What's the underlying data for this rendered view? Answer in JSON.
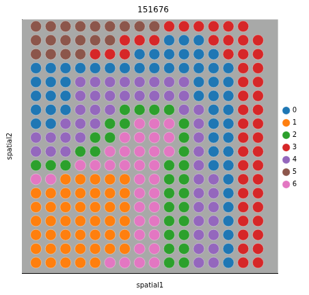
{
  "chart_data": {
    "type": "scatter",
    "title": "151676",
    "x_label": "spatial1",
    "y_label": "spatial2",
    "xlim": [
      31,
      377
    ],
    "ylim": [
      30,
      395
    ],
    "tick_labels": false,
    "grid": false,
    "legend": "right",
    "marker": "circle",
    "series": [
      {
        "name": "0",
        "color": "#1f77b4",
        "x": [
          230,
          250,
          270,
          190,
          210,
          230,
          250,
          270,
          290,
          50,
          70,
          90,
          110,
          130,
          150,
          170,
          190,
          210,
          230,
          250,
          270,
          290,
          310,
          50,
          70,
          90,
          270,
          290,
          310,
          50,
          70,
          90,
          270,
          290,
          310,
          50,
          70,
          90,
          290,
          310,
          50,
          70,
          290,
          310,
          290,
          310,
          290,
          310,
          290,
          310,
          310,
          310,
          310,
          310,
          310,
          310,
          310
        ],
        "y": [
          60,
          60,
          60,
          80,
          80,
          80,
          80,
          80,
          80,
          100,
          100,
          100,
          100,
          100,
          100,
          100,
          100,
          100,
          100,
          100,
          100,
          100,
          100,
          120,
          120,
          120,
          120,
          120,
          120,
          140,
          140,
          140,
          140,
          140,
          140,
          160,
          160,
          160,
          160,
          160,
          180,
          180,
          180,
          180,
          200,
          200,
          220,
          220,
          240,
          240,
          260,
          280,
          300,
          320,
          340,
          360,
          380
        ]
      },
      {
        "name": "1",
        "color": "#ff7f0e",
        "x": [
          90,
          110,
          130,
          150,
          170,
          50,
          70,
          90,
          110,
          130,
          150,
          170,
          50,
          70,
          90,
          110,
          130,
          150,
          170,
          50,
          70,
          90,
          110,
          130,
          150,
          170,
          50,
          70,
          90,
          110,
          130,
          150,
          170,
          50,
          70,
          90,
          110,
          130,
          150,
          170,
          50,
          70,
          90,
          110,
          130
        ],
        "y": [
          260,
          260,
          260,
          260,
          260,
          280,
          280,
          280,
          280,
          280,
          280,
          280,
          300,
          300,
          300,
          300,
          300,
          300,
          300,
          320,
          320,
          320,
          320,
          320,
          320,
          320,
          340,
          340,
          340,
          340,
          340,
          340,
          340,
          360,
          360,
          360,
          360,
          360,
          360,
          360,
          380,
          380,
          380,
          380,
          380
        ]
      },
      {
        "name": "2",
        "color": "#2ca02c",
        "x": [
          170,
          190,
          210,
          230,
          150,
          170,
          250,
          130,
          150,
          250,
          110,
          130,
          250,
          50,
          70,
          90,
          230,
          250,
          230,
          250,
          230,
          250,
          230,
          250,
          230,
          250,
          230,
          250,
          230,
          250,
          230,
          250
        ],
        "y": [
          160,
          160,
          160,
          160,
          180,
          180,
          180,
          200,
          200,
          200,
          220,
          220,
          220,
          240,
          240,
          240,
          240,
          240,
          260,
          260,
          280,
          280,
          300,
          300,
          320,
          320,
          340,
          340,
          360,
          360,
          380,
          380
        ]
      },
      {
        "name": "3",
        "color": "#d62728",
        "x": [
          230,
          250,
          270,
          290,
          310,
          330,
          170,
          190,
          210,
          290,
          310,
          330,
          350,
          130,
          150,
          170,
          310,
          330,
          350,
          330,
          350,
          330,
          350,
          330,
          350,
          330,
          350,
          330,
          350,
          330,
          350,
          330,
          350,
          330,
          350,
          330,
          350,
          330,
          350,
          330,
          350,
          330,
          350,
          330,
          350,
          330,
          350,
          330,
          350
        ],
        "y": [
          40,
          40,
          40,
          40,
          40,
          40,
          60,
          60,
          60,
          60,
          60,
          60,
          60,
          80,
          80,
          80,
          80,
          80,
          80,
          100,
          100,
          120,
          120,
          140,
          140,
          160,
          160,
          180,
          180,
          200,
          200,
          220,
          220,
          240,
          240,
          260,
          260,
          280,
          280,
          300,
          300,
          320,
          320,
          340,
          340,
          360,
          360,
          380,
          380
        ]
      },
      {
        "name": "4",
        "color": "#9467bd",
        "x": [
          110,
          130,
          150,
          170,
          190,
          210,
          230,
          250,
          110,
          130,
          150,
          170,
          190,
          210,
          230,
          250,
          110,
          130,
          150,
          250,
          270,
          90,
          110,
          130,
          270,
          50,
          70,
          90,
          110,
          270,
          50,
          70,
          90,
          270,
          270,
          270,
          290,
          270,
          290,
          270,
          290,
          270,
          290,
          270,
          290,
          270,
          290,
          270,
          290
        ],
        "y": [
          120,
          120,
          120,
          120,
          120,
          120,
          120,
          120,
          140,
          140,
          140,
          140,
          140,
          140,
          140,
          140,
          160,
          160,
          160,
          160,
          160,
          180,
          180,
          180,
          180,
          200,
          200,
          200,
          200,
          200,
          220,
          220,
          220,
          220,
          240,
          260,
          260,
          280,
          280,
          300,
          300,
          320,
          320,
          340,
          340,
          360,
          360,
          380,
          380
        ]
      },
      {
        "name": "5",
        "color": "#8c564b",
        "x": [
          50,
          70,
          90,
          110,
          130,
          150,
          170,
          190,
          210,
          50,
          70,
          90,
          110,
          130,
          150,
          50,
          70,
          90,
          110
        ],
        "y": [
          40,
          40,
          40,
          40,
          40,
          40,
          40,
          40,
          40,
          60,
          60,
          60,
          60,
          60,
          60,
          80,
          80,
          80,
          80
        ]
      },
      {
        "name": "6",
        "color": "#e377c2",
        "x": [
          190,
          210,
          230,
          170,
          190,
          210,
          230,
          150,
          170,
          190,
          210,
          230,
          110,
          130,
          150,
          170,
          190,
          210,
          50,
          70,
          190,
          210,
          190,
          210,
          190,
          210,
          190,
          210,
          190,
          210,
          190,
          210,
          150,
          170,
          190,
          210
        ],
        "y": [
          180,
          180,
          180,
          200,
          200,
          200,
          200,
          220,
          220,
          220,
          220,
          220,
          240,
          240,
          240,
          240,
          240,
          240,
          260,
          260,
          260,
          260,
          280,
          280,
          300,
          300,
          320,
          320,
          340,
          340,
          360,
          360,
          380,
          380,
          380,
          380
        ]
      }
    ]
  }
}
